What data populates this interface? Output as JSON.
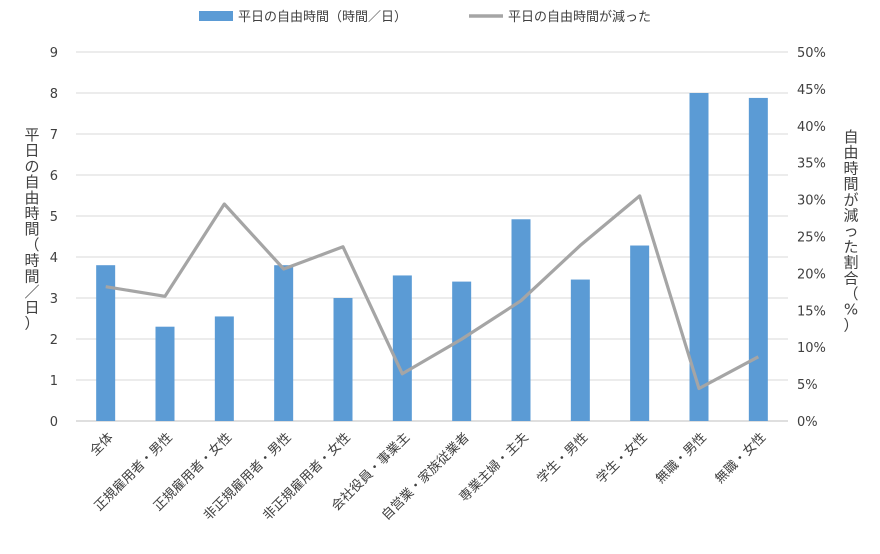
{
  "chart_data": {
    "type": "bar",
    "categories": [
      "全体",
      "正規雇用者・男性",
      "正規雇用者・女性",
      "非正規雇用者・男性",
      "非正規雇用者・女性",
      "会社役員・事業主",
      "自営業・家族従業者",
      "専業主婦・主夫",
      "学生・男性",
      "学生・女性",
      "無職・男性",
      "無職・女性"
    ],
    "series": [
      {
        "name": "平日の自由時間（時間／日）",
        "type": "bar",
        "axis": "left",
        "color": "#5b9bd5",
        "values": [
          3.8,
          2.3,
          2.55,
          3.8,
          3.0,
          3.55,
          3.4,
          4.92,
          3.45,
          4.28,
          8.0,
          7.88
        ]
      },
      {
        "name": "平日の自由時間が減った",
        "type": "line",
        "axis": "right",
        "color": "#a5a5a5",
        "values": [
          18.2,
          16.9,
          29.4,
          20.6,
          23.6,
          6.4,
          11.1,
          16.3,
          23.8,
          30.5,
          4.4,
          8.7
        ]
      }
    ],
    "y_left": {
      "label": "平日の自由時間（時間／日）",
      "min": 0,
      "max": 9,
      "step": 1,
      "ticks": [
        "0",
        "1",
        "2",
        "3",
        "4",
        "5",
        "6",
        "7",
        "8",
        "9"
      ]
    },
    "y_right": {
      "label": "自由時間が減った割合（%）",
      "min": 0,
      "max": 50,
      "step": 5,
      "ticks": [
        "0%",
        "5%",
        "10%",
        "15%",
        "20%",
        "25%",
        "30%",
        "35%",
        "40%",
        "45%",
        "50%"
      ]
    },
    "grid": true,
    "legend": "top"
  }
}
